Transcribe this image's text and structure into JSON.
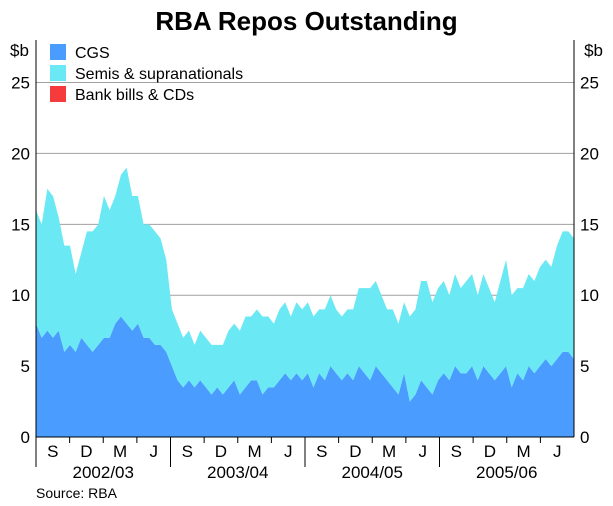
{
  "chart_data": {
    "type": "area",
    "stacked": true,
    "title": "RBA Repos Outstanding",
    "unit_left": "$b",
    "unit_right": "$b",
    "source": "Source: RBA",
    "ylim": [
      0,
      28
    ],
    "yticks": [
      0,
      5,
      10,
      15,
      20,
      25
    ],
    "gridlines": true,
    "legend": {
      "placement": "top-left",
      "items": [
        {
          "label": "CGS",
          "color": "#4a9dff"
        },
        {
          "label": "Semis & supranationals",
          "color": "#6ae8f3"
        },
        {
          "label": "Bank bills & CDs",
          "color": "#f53b3b"
        }
      ]
    },
    "x_range": [
      0,
      47.5
    ],
    "month_ticks": [
      "S",
      "D",
      "M",
      "J",
      "S",
      "D",
      "M",
      "J",
      "S",
      "D",
      "M",
      "J",
      "S",
      "D",
      "M",
      "J"
    ],
    "year_labels": [
      "2002/03",
      "2003/04",
      "2004/05",
      "2005/06"
    ],
    "x": [
      0,
      0.5,
      1,
      1.5,
      2,
      2.5,
      3,
      3.5,
      4,
      4.5,
      5,
      5.5,
      6,
      6.5,
      7,
      7.5,
      8,
      8.5,
      9,
      9.5,
      10,
      10.5,
      11,
      11.5,
      12,
      12.5,
      13,
      13.5,
      14,
      14.5,
      15,
      15.5,
      16,
      16.5,
      17,
      17.5,
      18,
      18.5,
      19,
      19.5,
      20,
      20.5,
      21,
      21.5,
      22,
      22.5,
      23,
      23.5,
      24,
      24.5,
      25,
      25.5,
      26,
      26.5,
      27,
      27.5,
      28,
      28.5,
      29,
      29.5,
      30,
      30.5,
      31,
      31.5,
      32,
      32.5,
      33,
      33.5,
      34,
      34.5,
      35,
      35.5,
      36,
      36.5,
      37,
      37.5,
      38,
      38.5,
      39,
      39.5,
      40,
      40.5,
      41,
      41.5,
      42,
      42.5,
      43,
      43.5,
      44,
      44.5,
      45,
      45.5,
      46,
      46.5,
      47,
      47.5
    ],
    "series": [
      {
        "name": "CGS",
        "values": [
          8,
          7,
          7.5,
          7,
          7.5,
          6,
          6.5,
          6,
          7,
          6.5,
          6,
          6.5,
          7,
          7,
          8,
          8.5,
          8,
          7.5,
          8,
          7,
          7,
          6.5,
          6.5,
          6,
          5,
          4,
          3.5,
          4,
          3.5,
          4,
          3.5,
          3,
          3.5,
          3,
          3.5,
          4,
          3,
          3.5,
          4,
          4,
          3,
          3.5,
          3.5,
          4,
          4.5,
          4,
          4.5,
          4,
          4.5,
          3.5,
          4.5,
          4,
          5,
          4.5,
          4,
          4.5,
          4,
          5,
          4.5,
          4,
          5,
          4.5,
          4,
          3.5,
          3,
          4.5,
          2.5,
          3,
          4,
          3.5,
          3,
          4,
          4.5,
          4,
          5,
          4.5,
          4.5,
          5,
          4,
          5,
          4.5,
          4,
          4.5,
          5,
          3.5,
          4.5,
          4,
          5,
          4.5,
          5,
          5.5,
          5,
          5.5,
          6,
          6,
          5.5
        ]
      },
      {
        "name": "Semis & supranationals",
        "values": [
          8,
          8,
          10,
          10,
          8,
          7.5,
          7,
          5.5,
          6,
          8,
          8.5,
          8.5,
          10,
          9,
          9,
          10,
          11,
          9.5,
          9,
          8,
          8,
          8,
          7.5,
          6.5,
          4,
          4,
          3.5,
          3.5,
          3,
          3.5,
          3.5,
          3.5,
          3,
          3.5,
          4,
          4,
          4.5,
          5,
          4.5,
          5,
          5.5,
          5,
          4.5,
          5,
          5,
          4.5,
          5,
          5,
          5,
          5,
          4.5,
          5,
          5,
          4.5,
          4.5,
          4.5,
          5,
          5.5,
          6,
          6.5,
          6,
          5.5,
          5,
          5.5,
          5,
          5,
          6,
          6,
          7,
          7.5,
          6.5,
          6.5,
          6.5,
          6,
          6.5,
          6,
          6.5,
          6.5,
          6,
          6.5,
          6,
          5.5,
          6.5,
          7.5,
          6.5,
          6,
          6.5,
          6.5,
          6.5,
          7,
          7,
          7,
          8,
          8.5,
          8.5,
          8.5
        ]
      },
      {
        "name": "Bank bills & CDs",
        "values": [
          0,
          0,
          0,
          0,
          0,
          0,
          0,
          0,
          0,
          0,
          0,
          0,
          0,
          0,
          0,
          0,
          0,
          0,
          0,
          0,
          0,
          0,
          0,
          0,
          0,
          0,
          0,
          0,
          0,
          0,
          0,
          0,
          0,
          0,
          0,
          0,
          0,
          0,
          0,
          0,
          0,
          0,
          0,
          0,
          0,
          0,
          0,
          0,
          0,
          0,
          0,
          0,
          0,
          0,
          0,
          0,
          0,
          0,
          0,
          0,
          0,
          0,
          0,
          0,
          0,
          0,
          0,
          0,
          0,
          0,
          0,
          0,
          0,
          0,
          0,
          0,
          0,
          0,
          0,
          0,
          0,
          0,
          0,
          0,
          0,
          0,
          0,
          0,
          0,
          0,
          0,
          0,
          0,
          0,
          0,
          0
        ]
      }
    ]
  }
}
